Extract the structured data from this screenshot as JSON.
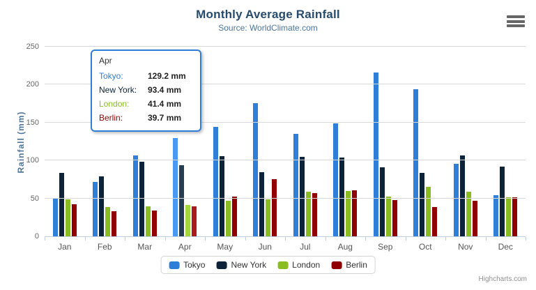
{
  "chart": {
    "title": "Monthly Average Rainfall",
    "subtitle": "Source: WorldClimate.com",
    "y_axis_title": "Rainfall (mm)",
    "credits": "Highcharts.com",
    "colors": {
      "title": "#274b6d",
      "subtitle": "#4d759e",
      "gridline": "#d8d8d8",
      "axis_line": "#c0d0e0",
      "tooltip_border": "#2f7ed8"
    }
  },
  "chart_data": {
    "type": "bar",
    "title": "Monthly Average Rainfall",
    "subtitle": "Source: WorldClimate.com",
    "xlabel": "",
    "ylabel": "Rainfall (mm)",
    "ylim": [
      0,
      250
    ],
    "y_tick_step": 50,
    "y_ticks": [
      0,
      50,
      100,
      150,
      200,
      250
    ],
    "grid": true,
    "legend_position": "bottom",
    "categories": [
      "Jan",
      "Feb",
      "Mar",
      "Apr",
      "May",
      "Jun",
      "Jul",
      "Aug",
      "Sep",
      "Oct",
      "Nov",
      "Dec"
    ],
    "series": [
      {
        "name": "Tokyo",
        "color": "#2f7ed8",
        "hover_color": "#4998f2",
        "values": [
          49.9,
          71.5,
          106.4,
          129.2,
          144.0,
          176.0,
          135.6,
          148.5,
          216.4,
          194.1,
          95.6,
          54.4
        ]
      },
      {
        "name": "New York",
        "color": "#0d233a",
        "hover_color": "#273d54",
        "values": [
          83.6,
          78.8,
          98.5,
          93.4,
          106.0,
          84.5,
          105.0,
          104.3,
          91.2,
          83.5,
          106.6,
          92.3
        ]
      },
      {
        "name": "London",
        "color": "#8bbc21",
        "hover_color": "#a5d63b",
        "values": [
          48.9,
          38.8,
          39.3,
          41.4,
          47.0,
          48.3,
          59.0,
          59.6,
          52.4,
          65.2,
          59.3,
          51.2
        ]
      },
      {
        "name": "Berlin",
        "color": "#910000",
        "hover_color": "#ab1a1a",
        "values": [
          42.4,
          33.2,
          34.5,
          39.7,
          52.6,
          75.5,
          57.4,
          60.4,
          47.6,
          39.1,
          46.8,
          51.1
        ]
      }
    ]
  },
  "tooltip": {
    "header": "Apr",
    "hover_month_index": 3,
    "rows": [
      {
        "label": "Tokyo:",
        "value": "129.2 mm",
        "color": "#2f7ed8"
      },
      {
        "label": "New York:",
        "value": "93.4 mm",
        "color": "#0d233a"
      },
      {
        "label": "London:",
        "value": "41.4 mm",
        "color": "#8bbc21"
      },
      {
        "label": "Berlin:",
        "value": "39.7 mm",
        "color": "#910000"
      }
    ]
  }
}
